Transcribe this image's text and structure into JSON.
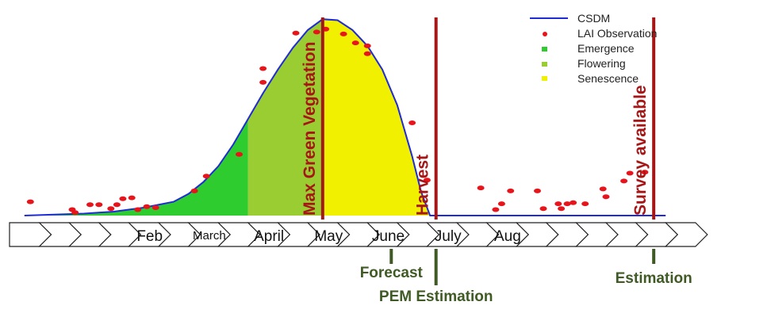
{
  "colors": {
    "csdm_line": "#1f2bd6",
    "observation": "#e8141b",
    "emergence": "#2ecc2e",
    "flowering": "#9acd32",
    "senescence": "#f0f000",
    "stage_line": "#a61616",
    "event": "#3f5a24",
    "baseline": "#1f2bd6"
  },
  "legend": {
    "position": "top-right",
    "items": [
      {
        "label": "CSDM",
        "symbol": "line",
        "color_key": "csdm_line"
      },
      {
        "label": "LAI Observation",
        "symbol": "dot",
        "color_key": "observation"
      },
      {
        "label": "Emergence",
        "symbol": "square",
        "color_key": "emergence"
      },
      {
        "label": "Flowering",
        "symbol": "square",
        "color_key": "flowering"
      },
      {
        "label": "Senescence",
        "symbol": "square",
        "color_key": "senescence"
      }
    ]
  },
  "timeline": {
    "chevron_count": 23,
    "months": [
      {
        "label": "Feb",
        "chevron": 4,
        "size": "large"
      },
      {
        "label": "March",
        "chevron": 6,
        "size": "small"
      },
      {
        "label": "April",
        "chevron": 8,
        "size": "large"
      },
      {
        "label": "May",
        "chevron": 10,
        "size": "large"
      },
      {
        "label": "June",
        "chevron": 12,
        "size": "large"
      },
      {
        "label": "July",
        "chevron": 14,
        "size": "large"
      },
      {
        "label": "Aug",
        "chevron": 16,
        "size": "large"
      }
    ]
  },
  "stage_lines": [
    {
      "label": "Max Green Vegetation",
      "chevron_pos": 10.5
    },
    {
      "label": "Harvest",
      "chevron_pos": 14.3
    },
    {
      "label": "Survey available",
      "chevron_pos": 21.6
    }
  ],
  "events": [
    {
      "label": "Forecast",
      "chevron_pos": 12.8
    },
    {
      "label": "PEM Estimation",
      "chevron_pos": 14.3
    },
    {
      "label": "Estimation",
      "chevron_pos": 21.6
    }
  ],
  "chart_data": {
    "type": "area",
    "x_unit": "chevron index (timeline steps)",
    "y_unit": "LAI (relative)",
    "xlim": [
      0,
      23
    ],
    "ylim": [
      0,
      1
    ],
    "csdm_curve": [
      [
        0.5,
        0.0
      ],
      [
        1.5,
        0.005
      ],
      [
        2.5,
        0.01
      ],
      [
        3.5,
        0.02
      ],
      [
        4.5,
        0.04
      ],
      [
        5.5,
        0.07
      ],
      [
        6.0,
        0.11
      ],
      [
        6.5,
        0.17
      ],
      [
        7.0,
        0.25
      ],
      [
        7.5,
        0.36
      ],
      [
        8.0,
        0.49
      ],
      [
        8.5,
        0.62
      ],
      [
        9.0,
        0.74
      ],
      [
        9.5,
        0.85
      ],
      [
        10.0,
        0.94
      ],
      [
        10.5,
        0.995
      ],
      [
        11.0,
        0.99
      ],
      [
        11.5,
        0.94
      ],
      [
        12.0,
        0.86
      ],
      [
        12.5,
        0.74
      ],
      [
        13.0,
        0.56
      ],
      [
        13.5,
        0.3
      ],
      [
        13.8,
        0.12
      ],
      [
        14.1,
        0.0
      ],
      [
        22.0,
        0.0
      ]
    ],
    "phases": [
      {
        "name": "Emergence",
        "x": [
          0.5,
          8.0
        ],
        "color_key": "emergence"
      },
      {
        "name": "Flowering",
        "x": [
          8.0,
          10.5
        ],
        "color_key": "flowering"
      },
      {
        "name": "Senescence",
        "x": [
          10.5,
          14.1
        ],
        "color_key": "senescence"
      }
    ],
    "observations": [
      [
        0.7,
        0.07
      ],
      [
        2.1,
        0.03
      ],
      [
        2.2,
        0.015
      ],
      [
        2.7,
        0.055
      ],
      [
        3.0,
        0.055
      ],
      [
        3.4,
        0.035
      ],
      [
        3.6,
        0.055
      ],
      [
        3.8,
        0.085
      ],
      [
        4.1,
        0.09
      ],
      [
        4.3,
        0.03
      ],
      [
        4.6,
        0.045
      ],
      [
        4.9,
        0.04
      ],
      [
        6.2,
        0.125
      ],
      [
        6.6,
        0.2
      ],
      [
        7.7,
        0.31
      ],
      [
        8.5,
        0.675
      ],
      [
        8.5,
        0.745
      ],
      [
        9.6,
        0.925
      ],
      [
        10.3,
        0.93
      ],
      [
        10.6,
        0.945
      ],
      [
        11.2,
        0.92
      ],
      [
        11.6,
        0.875
      ],
      [
        12.0,
        0.86
      ],
      [
        12.0,
        0.82
      ],
      [
        13.5,
        0.47
      ],
      [
        14.0,
        0.18
      ],
      [
        15.8,
        0.14
      ],
      [
        16.3,
        0.03
      ],
      [
        16.5,
        0.06
      ],
      [
        16.8,
        0.125
      ],
      [
        17.7,
        0.125
      ],
      [
        17.9,
        0.035
      ],
      [
        18.4,
        0.06
      ],
      [
        18.5,
        0.035
      ],
      [
        18.7,
        0.06
      ],
      [
        18.9,
        0.065
      ],
      [
        19.3,
        0.06
      ],
      [
        19.9,
        0.135
      ],
      [
        20.0,
        0.095
      ],
      [
        20.6,
        0.175
      ],
      [
        20.8,
        0.215
      ],
      [
        21.3,
        0.22
      ]
    ]
  }
}
